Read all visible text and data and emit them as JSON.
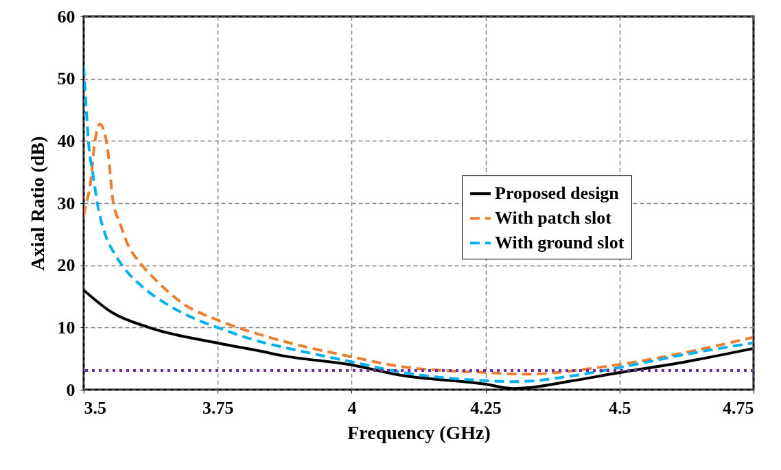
{
  "chart_data": {
    "type": "line",
    "xlabel": "Frequency (GHz)",
    "ylabel": "Axial Ratio (dB)",
    "xlim": [
      3.5,
      4.75
    ],
    "xticks": [
      3.5,
      3.75,
      4,
      4.25,
      4.5,
      4.75
    ],
    "ylim": [
      0,
      60
    ],
    "yticks": [
      0,
      10,
      20,
      30,
      40,
      50,
      60
    ],
    "grid": true,
    "legend": "right",
    "series": [
      {
        "name": "Proposed design",
        "color": "#000000",
        "line_style": "solid",
        "x": [
          3.5,
          3.553,
          3.622,
          3.75,
          3.83,
          3.869,
          3.999,
          4.087,
          4.249,
          4.3,
          4.326,
          4.41,
          4.496,
          4.624,
          4.748
        ],
        "values": [
          16,
          12.4,
          10,
          7.5,
          6.2,
          5.5,
          4,
          2.4,
          0.9,
          0.2,
          0.3,
          1.4,
          2.7,
          4.5,
          6.6
        ]
      },
      {
        "name": "With patch slot",
        "color": "#ed7d31",
        "line_style": "dashed",
        "x": [
          3.5,
          3.502,
          3.512,
          3.521,
          3.53,
          3.544,
          3.555,
          3.567,
          3.581,
          3.606,
          3.636,
          3.686,
          3.75,
          3.847,
          3.999,
          4.087,
          4.24,
          4.326,
          4.454,
          4.496,
          4.624,
          4.748
        ],
        "values": [
          28,
          28.9,
          32.9,
          40,
          42.7,
          39.1,
          30.1,
          26.9,
          23.6,
          20.3,
          17.5,
          13.8,
          11.2,
          8.4,
          5.3,
          3.8,
          2.8,
          2.5,
          3.5,
          4,
          6,
          8.4
        ]
      },
      {
        "name": "With ground slot",
        "color": "#00b0f0",
        "line_style": "dashed",
        "x": [
          3.5,
          3.505,
          3.51,
          3.517,
          3.526,
          3.54,
          3.558,
          3.576,
          3.613,
          3.658,
          3.713,
          3.75,
          3.83,
          3.869,
          3.999,
          4.087,
          4.24,
          4.305,
          4.41,
          4.496,
          4.624,
          4.748
        ],
        "values": [
          52,
          44.7,
          38.8,
          34.8,
          29.7,
          25,
          21.8,
          19.5,
          16.3,
          13.6,
          11.2,
          10,
          7.7,
          6.9,
          4.5,
          2.9,
          1.5,
          1.3,
          2.2,
          3.5,
          5.7,
          7.5
        ]
      }
    ],
    "ref_lines": [
      {
        "axis": "y",
        "value": 3.1,
        "color": "#7030a0",
        "line_style": "dotted"
      }
    ]
  }
}
